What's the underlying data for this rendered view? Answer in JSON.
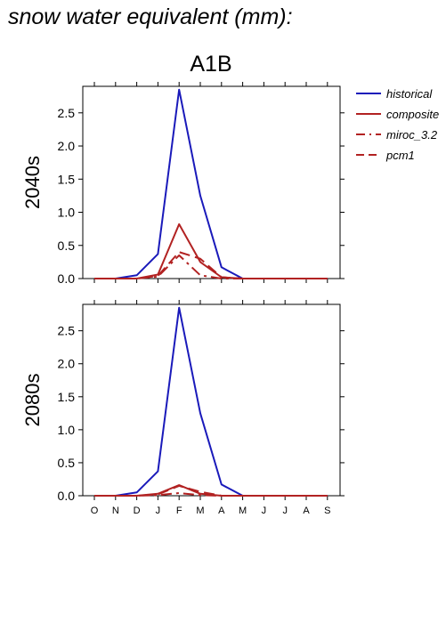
{
  "title": "snow water equivalent (mm):",
  "scenario": "A1B",
  "colors": {
    "historical": "#1a1aba",
    "future": "#b22222"
  },
  "chart_data": [
    {
      "type": "line",
      "row_label": "2040s",
      "categories": [
        "O",
        "N",
        "D",
        "J",
        "F",
        "M",
        "A",
        "M",
        "J",
        "J",
        "A",
        "S"
      ],
      "ylim": [
        0,
        2.9
      ],
      "yticks": [
        "0.0",
        "0.5",
        "1.0",
        "1.5",
        "2.0",
        "2.5"
      ],
      "series": [
        {
          "name": "historical",
          "style": "solid",
          "values": [
            0,
            0,
            0.05,
            0.37,
            2.85,
            1.25,
            0.17,
            0,
            0,
            0,
            0,
            0
          ]
        },
        {
          "name": "composite",
          "style": "solid",
          "values": [
            0,
            0,
            0,
            0.06,
            0.82,
            0.25,
            0.02,
            0,
            0,
            0,
            0,
            0
          ]
        },
        {
          "name": "miroc_3.2",
          "style": "dashdot",
          "values": [
            0,
            0,
            0,
            0.03,
            0.35,
            0.05,
            0,
            0,
            0,
            0,
            0,
            0
          ]
        },
        {
          "name": "pcm1",
          "style": "dashed",
          "values": [
            0,
            0,
            0,
            0.04,
            0.4,
            0.3,
            0.02,
            0,
            0,
            0,
            0,
            0
          ]
        }
      ]
    },
    {
      "type": "line",
      "row_label": "2080s",
      "categories": [
        "O",
        "N",
        "D",
        "J",
        "F",
        "M",
        "A",
        "M",
        "J",
        "J",
        "A",
        "S"
      ],
      "ylim": [
        0,
        2.9
      ],
      "yticks": [
        "0.0",
        "0.5",
        "1.0",
        "1.5",
        "2.0",
        "2.5"
      ],
      "series": [
        {
          "name": "historical",
          "style": "solid",
          "values": [
            0,
            0,
            0.05,
            0.37,
            2.85,
            1.25,
            0.17,
            0,
            0,
            0,
            0,
            0
          ]
        },
        {
          "name": "composite",
          "style": "solid",
          "values": [
            0,
            0,
            0,
            0.03,
            0.16,
            0.03,
            0,
            0,
            0,
            0,
            0,
            0
          ]
        },
        {
          "name": "miroc_3.2",
          "style": "dashdot",
          "values": [
            0,
            0,
            0,
            0.01,
            0.04,
            0.01,
            0,
            0,
            0,
            0,
            0,
            0
          ]
        },
        {
          "name": "pcm1",
          "style": "dashed",
          "values": [
            0,
            0,
            0,
            0.02,
            0.15,
            0.06,
            0,
            0,
            0,
            0,
            0,
            0
          ]
        }
      ]
    }
  ],
  "legend": [
    {
      "name": "historical",
      "style": "solid",
      "color_key": "historical"
    },
    {
      "name": "composite",
      "style": "solid",
      "color_key": "future"
    },
    {
      "name": "miroc_3.2",
      "style": "dashdot",
      "color_key": "future"
    },
    {
      "name": "pcm1",
      "style": "dashed",
      "color_key": "future"
    }
  ]
}
